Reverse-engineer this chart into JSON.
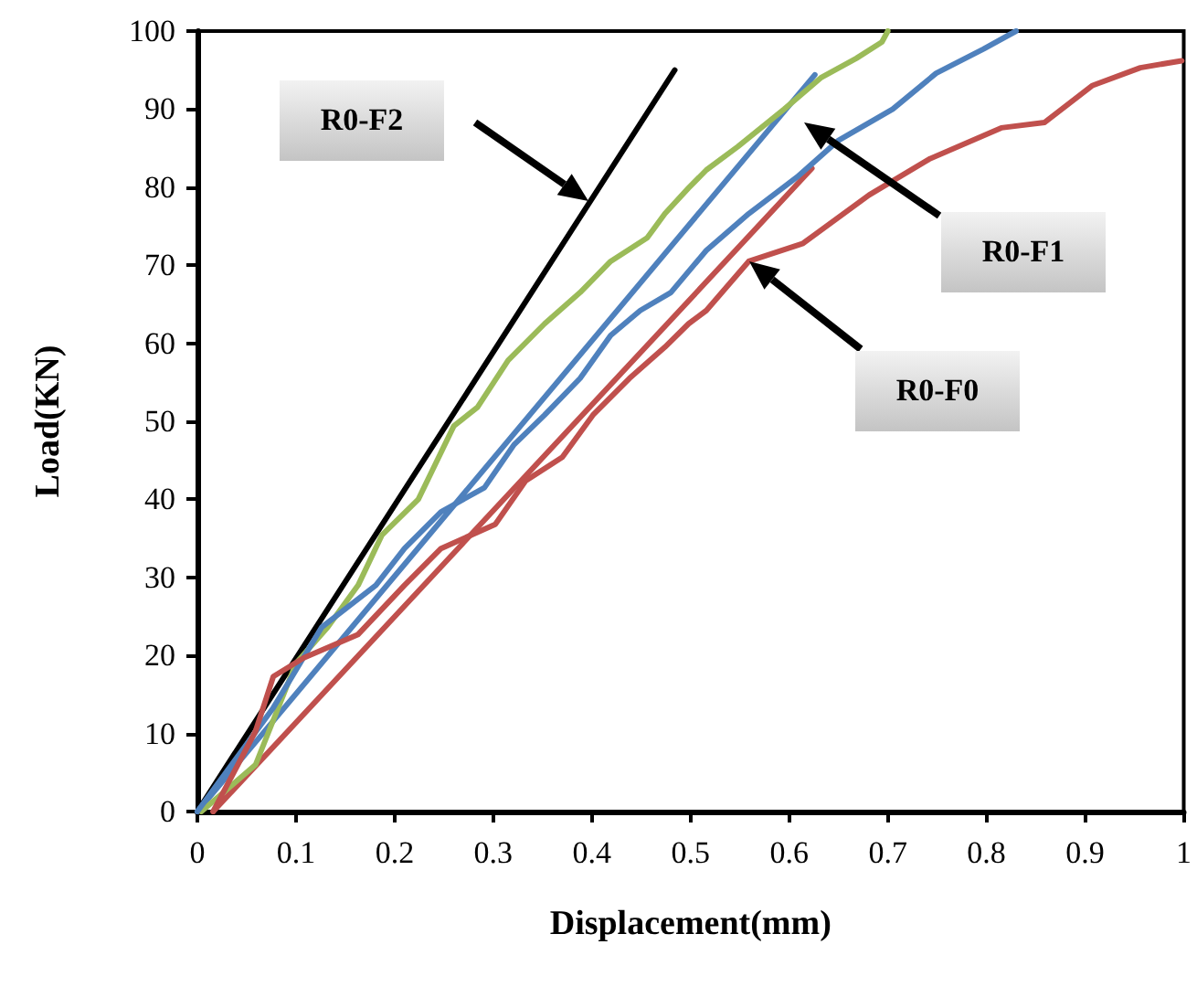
{
  "chart_data": {
    "type": "line",
    "xlabel": "Displacement(mm)",
    "ylabel": "Load(KN)",
    "xlim": [
      0,
      1
    ],
    "xticks": [
      0,
      0.1,
      0.2,
      0.3,
      0.4,
      0.5,
      0.6,
      0.7,
      0.8,
      0.9,
      1
    ],
    "ylim": [
      0,
      100
    ],
    "yticks": [
      0,
      10,
      20,
      30,
      40,
      50,
      60,
      70,
      80,
      90,
      100
    ],
    "grid": false,
    "marker": "none",
    "line_style": "solid",
    "series": [
      {
        "color": "#000000",
        "x": [
          0,
          0.484
        ],
        "values": [
          0,
          95
        ]
      },
      {
        "color": "#4f81bd",
        "x": [
          0,
          0.626
        ],
        "values": [
          0,
          94.4
        ]
      },
      {
        "color": "#c0504d",
        "x": [
          0.016,
          0.623
        ],
        "values": [
          0,
          82.4
        ]
      },
      {
        "color": "#9bbb59",
        "x": [
          0.004,
          0.059,
          0.1,
          0.132,
          0.163,
          0.187,
          0.224,
          0.26,
          0.284,
          0.315,
          0.352,
          0.388,
          0.419,
          0.456,
          0.474,
          0.498,
          0.516,
          0.548,
          0.595,
          0.632,
          0.668,
          0.694,
          0.7
        ],
        "values": [
          0,
          6,
          19,
          23.6,
          29,
          35.4,
          40,
          49.4,
          51.8,
          57.8,
          62.5,
          66.5,
          70.5,
          73.5,
          76.6,
          79.9,
          82.2,
          85.2,
          90,
          94,
          96.5,
          98.6,
          100
        ]
      },
      {
        "color": "#4f81bd",
        "x": [
          0,
          0.077,
          0.126,
          0.181,
          0.21,
          0.247,
          0.291,
          0.321,
          0.352,
          0.388,
          0.419,
          0.449,
          0.48,
          0.516,
          0.559,
          0.608,
          0.65,
          0.705,
          0.749,
          0.797,
          0.83
        ],
        "values": [
          0,
          13.3,
          23.6,
          29,
          33.7,
          38.4,
          41.5,
          47,
          50.8,
          55.5,
          61,
          64.2,
          66.5,
          71.9,
          76.6,
          81.3,
          86,
          90,
          94.6,
          97.7,
          100
        ]
      },
      {
        "color": "#c0504d",
        "x": [
          0.016,
          0.059,
          0.077,
          0.108,
          0.163,
          0.21,
          0.247,
          0.302,
          0.333,
          0.37,
          0.401,
          0.438,
          0.474,
          0.498,
          0.516,
          0.559,
          0.614,
          0.681,
          0.742,
          0.815,
          0.859,
          0.907,
          0.956,
          0.998
        ],
        "values": [
          0,
          10.3,
          17.3,
          19.7,
          22.7,
          29,
          33.7,
          36.8,
          42.4,
          45.4,
          50.8,
          55.5,
          59.5,
          62.5,
          64.2,
          70.5,
          72.8,
          79,
          83.6,
          87.6,
          88.3,
          93,
          95.3,
          96.2
        ]
      }
    ],
    "annotations": [
      "R0-F2",
      "R0-F1",
      "R0-F0"
    ]
  }
}
